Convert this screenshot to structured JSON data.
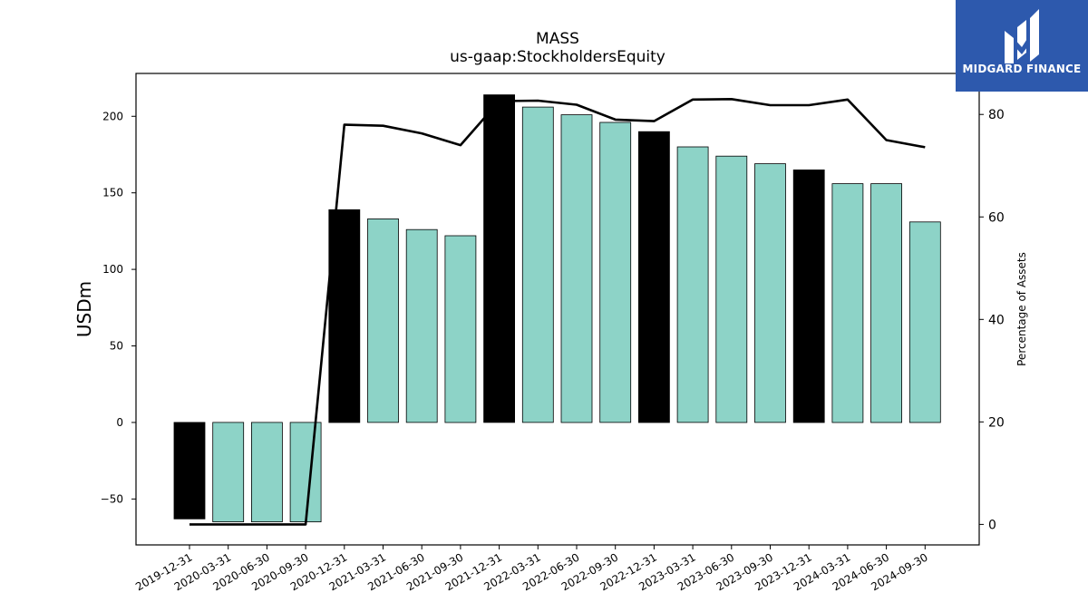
{
  "chart_data": {
    "type": "bar",
    "title": "MASS",
    "subtitle": "us-gaap:StockholdersEquity",
    "ylabel": "USDm",
    "y2label": "Percentage of Assets",
    "categories": [
      "2019-12-31",
      "2020-03-31",
      "2020-06-30",
      "2020-09-30",
      "2020-12-31",
      "2021-03-31",
      "2021-06-30",
      "2021-09-30",
      "2021-12-31",
      "2022-03-31",
      "2022-06-30",
      "2022-09-30",
      "2022-12-31",
      "2023-03-31",
      "2023-06-30",
      "2023-09-30",
      "2023-12-31",
      "2024-03-31",
      "2024-06-30",
      "2024-09-30"
    ],
    "series": [
      {
        "type": "bar",
        "values": [
          -63,
          -65,
          -65,
          -65,
          139,
          133,
          126,
          122,
          214,
          206,
          201,
          196,
          190,
          180,
          174,
          169,
          165,
          156,
          156,
          131
        ],
        "colors": [
          "#000000",
          "#8dd3c7",
          "#8dd3c7",
          "#8dd3c7",
          "#000000",
          "#8dd3c7",
          "#8dd3c7",
          "#8dd3c7",
          "#000000",
          "#8dd3c7",
          "#8dd3c7",
          "#8dd3c7",
          "#000000",
          "#8dd3c7",
          "#8dd3c7",
          "#8dd3c7",
          "#000000",
          "#8dd3c7",
          "#8dd3c7",
          "#8dd3c7"
        ]
      },
      {
        "type": "line",
        "axis": "right",
        "color": "#000000",
        "values": [
          0,
          0,
          0,
          0,
          78,
          77.8,
          76.3,
          74,
          82.6,
          82.7,
          81.9,
          79,
          78.7,
          82.9,
          83,
          81.8,
          81.8,
          82.9,
          75,
          73.6
        ]
      }
    ],
    "ylim": [
      -80,
      228
    ],
    "yticks": [
      -50,
      0,
      50,
      100,
      150,
      200
    ],
    "ytick_labels": [
      "−50",
      "0",
      "50",
      "100",
      "150",
      "200"
    ],
    "y2lim": [
      -4,
      88
    ],
    "y2ticks": [
      0,
      20,
      40,
      60,
      80
    ],
    "grid": false,
    "legend": "none"
  },
  "logo": {
    "text": "MIDGARD FINANCE",
    "icon": "midgard-logo-icon"
  }
}
